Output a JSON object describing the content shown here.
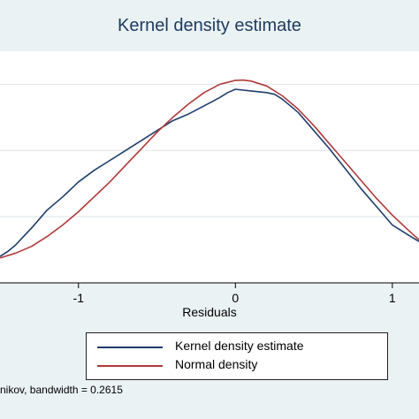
{
  "chart_data": {
    "type": "line",
    "title": "Kernel density estimate",
    "xlabel": "Residuals",
    "ylabel": "",
    "xlim": [
      -1.5,
      1.17
    ],
    "x_ticks": [
      -1,
      0,
      1
    ],
    "x_tick_labels": [
      "-1",
      "0",
      "1"
    ],
    "y_gridlines": [
      0.2,
      0.4,
      0.6
    ],
    "ylim": [
      0.0,
      0.7
    ],
    "grid": true,
    "legend_placement": "bottom",
    "series": [
      {
        "name": "Kernel density estimate",
        "color": "#1f3d6b",
        "x": [
          -1.5,
          -1.45,
          -1.4,
          -1.35,
          -1.3,
          -1.2,
          -1.1,
          -1.0,
          -0.9,
          -0.8,
          -0.7,
          -0.6,
          -0.5,
          -0.4,
          -0.3,
          -0.2,
          -0.1,
          -0.05,
          0.0,
          0.1,
          0.2,
          0.25,
          0.3,
          0.4,
          0.5,
          0.6,
          0.7,
          0.8,
          0.9,
          1.0,
          1.1,
          1.17
        ],
        "y": [
          0.08,
          0.095,
          0.115,
          0.14,
          0.165,
          0.22,
          0.26,
          0.305,
          0.34,
          0.37,
          0.4,
          0.43,
          0.46,
          0.49,
          0.51,
          0.535,
          0.56,
          0.575,
          0.585,
          0.58,
          0.575,
          0.57,
          0.555,
          0.515,
          0.46,
          0.405,
          0.345,
          0.285,
          0.23,
          0.175,
          0.145,
          0.125
        ]
      },
      {
        "name": "Normal density",
        "color": "#b03a3a",
        "x": [
          -1.5,
          -1.4,
          -1.3,
          -1.2,
          -1.1,
          -1.0,
          -0.9,
          -0.8,
          -0.7,
          -0.6,
          -0.5,
          -0.4,
          -0.3,
          -0.2,
          -0.1,
          0.0,
          0.05,
          0.1,
          0.2,
          0.3,
          0.4,
          0.5,
          0.6,
          0.7,
          0.8,
          0.9,
          1.0,
          1.1,
          1.17
        ],
        "y": [
          0.075,
          0.09,
          0.11,
          0.14,
          0.175,
          0.215,
          0.26,
          0.305,
          0.355,
          0.405,
          0.455,
          0.5,
          0.54,
          0.575,
          0.6,
          0.612,
          0.613,
          0.61,
          0.595,
          0.565,
          0.525,
          0.475,
          0.42,
          0.365,
          0.31,
          0.255,
          0.205,
          0.16,
          0.13
        ]
      }
    ]
  },
  "note": "nikov, bandwidth = 0.2615"
}
